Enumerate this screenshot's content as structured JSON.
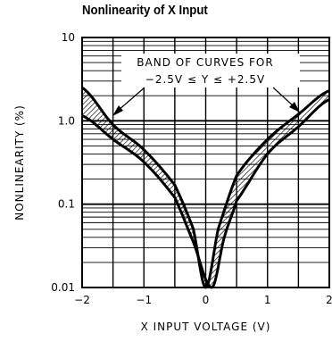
{
  "chart_data": {
    "type": "line",
    "title": "Nonlinearity of X Input",
    "xlabel": "X INPUT VOLTAGE (V)",
    "ylabel": "NONLINEARITY (%)",
    "xlim": [
      -2,
      2
    ],
    "ylim": [
      0.01,
      10
    ],
    "yscale": "log",
    "grid": true,
    "x_ticks": [
      "-2",
      "-1",
      "0",
      "1",
      "2"
    ],
    "y_ticks": [
      "0.01",
      "0.1",
      "1.0",
      "10"
    ],
    "annotation": [
      "BAND OF CURVES FOR",
      "−2.5V ≤ Y ≤ +2.5V"
    ],
    "series": [
      {
        "x": [
          -2,
          -1.5,
          -1,
          -0.5,
          -0.2,
          0,
          0.2,
          0.5,
          1,
          1.5,
          2
        ],
        "y": [
          2.5,
          0.9,
          0.45,
          0.17,
          0.05,
          0.01,
          0.05,
          0.22,
          0.6,
          1.2,
          2.3
        ]
      },
      {
        "x": [
          -2,
          -1.5,
          -1,
          -0.5,
          -0.2,
          0.1,
          0.3,
          0.5,
          1,
          1.5,
          2
        ],
        "y": [
          1.15,
          0.6,
          0.32,
          0.12,
          0.035,
          0.01,
          0.04,
          0.11,
          0.4,
          0.85,
          1.8
        ]
      }
    ]
  }
}
